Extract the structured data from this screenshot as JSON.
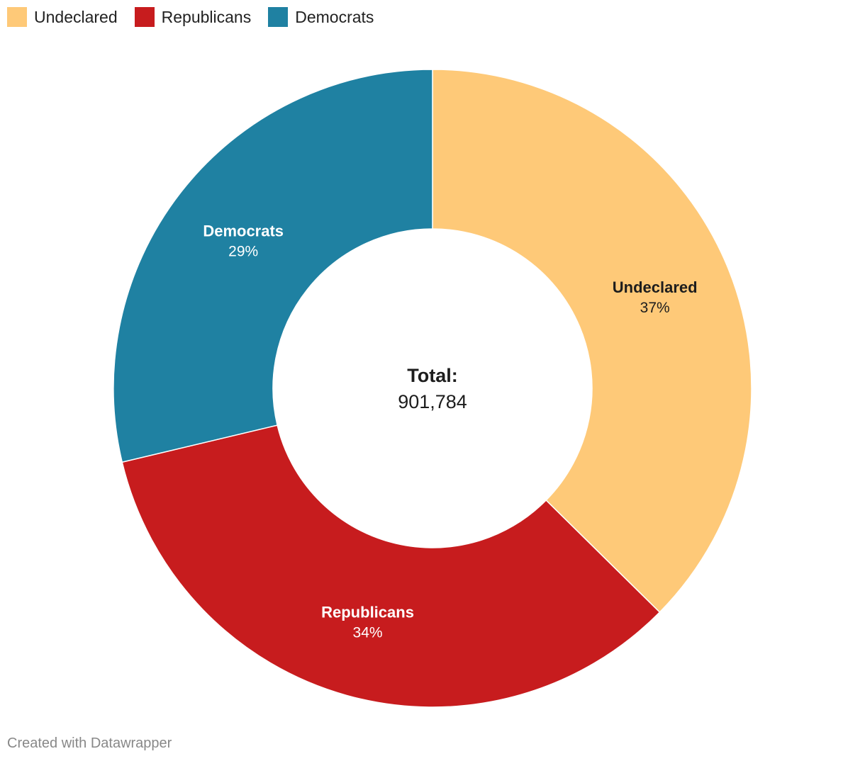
{
  "chart_data": {
    "type": "pie",
    "variant": "donut",
    "start_angle_deg": 0,
    "direction": "clockwise",
    "legend_position": "top-left",
    "slices": [
      {
        "label": "Undeclared",
        "display_label": "Undeclared",
        "value_text": "37%",
        "value": 37.39,
        "color": "#fec978",
        "label_color": "#1d1d1d"
      },
      {
        "label": "Republicans",
        "display_label": "Republicans",
        "value_text": "34%",
        "value": 33.89,
        "color": "#c71c1e",
        "label_color": "#ffffff"
      },
      {
        "label": "Democrats",
        "display_label": "Democrats",
        "value_text": "29%",
        "value": 28.72,
        "color": "#1f81a2",
        "label_color": "#ffffff"
      }
    ],
    "center": {
      "title": "Total:",
      "value": "901,784"
    }
  },
  "legend": {
    "items": [
      {
        "label": "Undeclared",
        "color": "#fec978"
      },
      {
        "label": "Republicans",
        "color": "#c71c1e"
      },
      {
        "label": "Democrats",
        "color": "#1f81a2"
      }
    ]
  },
  "footer": {
    "credit": "Created with Datawrapper"
  }
}
